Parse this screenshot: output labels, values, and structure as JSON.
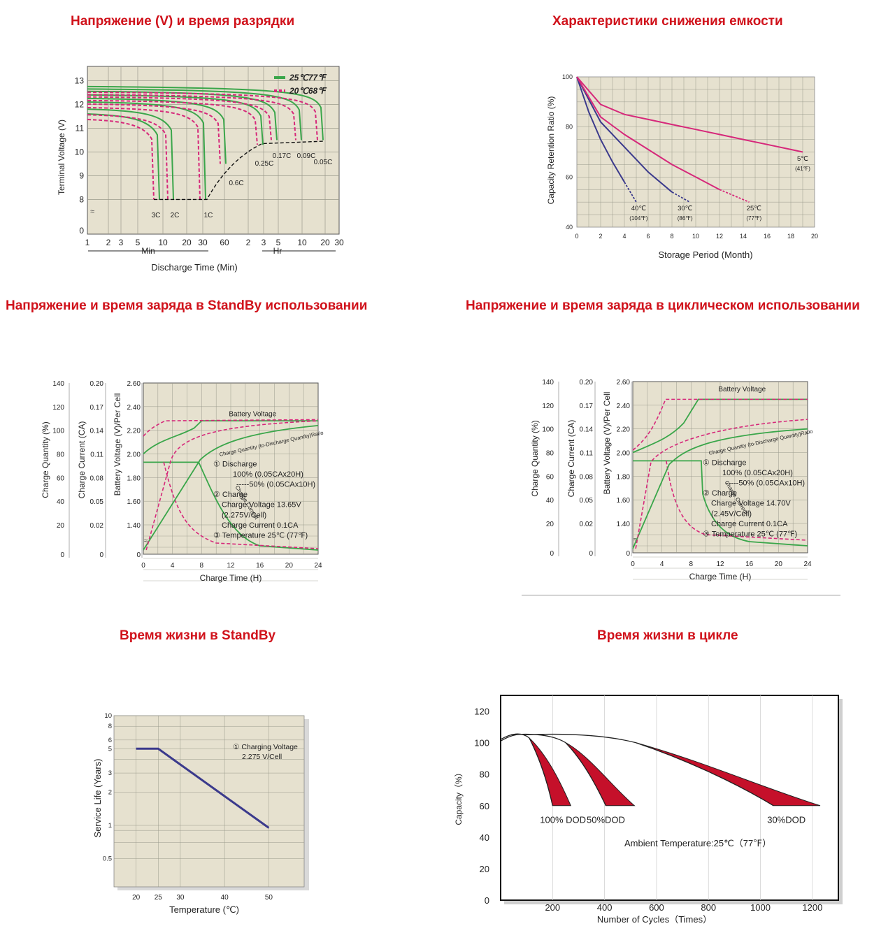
{
  "titles": {
    "discharge": "Напряжение (V) и время разрядки",
    "retention": "Характеристики снижения емкости",
    "standby_charge": "Напряжение и время заряда в StandBy использовании",
    "cyclic_charge": "Напряжение и время заряда в циклическом использовании",
    "standby_life": "Время жизни в StandBy",
    "cycle_life": "Время жизни в цикле"
  },
  "colors": {
    "title": "#d0121b",
    "plot_bg": "#e6e1cf",
    "grid": "#9a9a8c",
    "green": "#3aa64a",
    "magenta": "#d6287a",
    "navy": "#3b3a8c",
    "crimson": "#c5102a"
  },
  "chart_data": [
    {
      "id": "discharge",
      "type": "line",
      "xlabel": "Discharge Time (Min)",
      "ylabel": "Terminal Voltage (V)",
      "x_ticks": [
        "1",
        "2",
        "3",
        "5",
        "10",
        "20",
        "30",
        "60",
        "2",
        "3",
        "5",
        "10",
        "20",
        "30"
      ],
      "x_groups": [
        "Min",
        "Hr"
      ],
      "y_ticks": [
        "13",
        "12",
        "11",
        "10",
        "9",
        "8",
        "0"
      ],
      "legend": [
        "25℃77℉",
        "20℃68℉"
      ],
      "legend_position": "top-right",
      "rate_labels": [
        "3C",
        "2C",
        "1C",
        "0.6C",
        "0.25C",
        "0.17C",
        "0.09C",
        "0.05C"
      ],
      "series": [
        {
          "rate": "3C",
          "end_voltage": 8.0,
          "end_time_min": 7
        },
        {
          "rate": "2C",
          "end_voltage": 8.0,
          "end_time_min": 12
        },
        {
          "rate": "1C",
          "end_voltage": 8.0,
          "end_time_min": 30
        },
        {
          "rate": "0.6C",
          "end_voltage": 9.5,
          "end_time_min": 60
        },
        {
          "rate": "0.25C",
          "end_voltage": 10.3,
          "end_time_min": 180
        },
        {
          "rate": "0.17C",
          "end_voltage": 10.5,
          "end_time_min": 300
        },
        {
          "rate": "0.09C",
          "end_voltage": 10.5,
          "end_time_min": 600
        },
        {
          "rate": "0.05C",
          "end_voltage": 10.5,
          "end_time_min": 1200
        }
      ]
    },
    {
      "id": "retention",
      "type": "line",
      "xlabel": "Storage Period (Month)",
      "ylabel": "Capacity Retention Ratio (%)",
      "xlim": [
        0,
        20
      ],
      "ylim": [
        40,
        100
      ],
      "x_ticks": [
        "0",
        "2",
        "4",
        "6",
        "8",
        "10",
        "12",
        "14",
        "16",
        "18",
        "20"
      ],
      "y_ticks": [
        "100",
        "80",
        "60",
        "40"
      ],
      "series": [
        {
          "name": "40℃",
          "alt": "(104℉)",
          "x": [
            0,
            1,
            2,
            3,
            4,
            5
          ],
          "y": [
            100,
            86,
            75,
            66,
            58,
            50
          ]
        },
        {
          "name": "30℃",
          "alt": "(86℉)",
          "x": [
            0,
            2,
            4,
            6,
            8,
            9.5
          ],
          "y": [
            100,
            82,
            72,
            62,
            54,
            50
          ]
        },
        {
          "name": "25℃",
          "alt": "(77℉)",
          "x": [
            0,
            2,
            4,
            6,
            8,
            10,
            12,
            14.5
          ],
          "y": [
            100,
            84,
            77,
            71,
            65,
            60,
            55,
            50
          ]
        },
        {
          "name": "5℃",
          "alt": "(41℉)",
          "x": [
            0,
            2,
            4,
            6,
            8,
            10,
            12,
            14,
            16,
            18,
            19
          ],
          "y": [
            100,
            89,
            85,
            83,
            81,
            79,
            77,
            75,
            73,
            71,
            70
          ]
        }
      ]
    },
    {
      "id": "standby_charge",
      "type": "line",
      "xlabel": "Charge Time (H)",
      "y1label": "Charge Quantity (%)",
      "y2label": "Charge Current (CA)",
      "y3label": "Battery Voltage (V)/Per Cell",
      "x_ticks": [
        "0",
        "4",
        "8",
        "12",
        "16",
        "20",
        "24"
      ],
      "y1_ticks": [
        "140",
        "120",
        "100",
        "80",
        "60",
        "40",
        "20",
        "0"
      ],
      "y2_ticks": [
        "0.20",
        "0.17",
        "0.14",
        "0.11",
        "0.08",
        "0.05",
        "0.02",
        "0"
      ],
      "y3_ticks": [
        "2.60",
        "2.40",
        "2.20",
        "2.00",
        "1.80",
        "1.60",
        "1.40",
        "0"
      ],
      "curve_labels": [
        "Battery Voltage",
        "Charge Quantity (to-Discharge Quantity)Ratio",
        "Charge Current"
      ],
      "notes": [
        "① Discharge",
        "100% (0.05CAx20H)",
        "-----50% (0.05CAx10H)",
        "② Charge",
        "Charge Voltage 13.65V",
        "(2.275V/Cell)",
        "Charge Current 0.1CA",
        "③ Temperature 25℃ (77℉)"
      ]
    },
    {
      "id": "cyclic_charge",
      "type": "line",
      "xlabel": "Charge Time (H)",
      "y1label": "Charge Quantity (%)",
      "y2label": "Charge Current (CA)",
      "y3label": "Battery Voltage (V)/Per Cell",
      "x_ticks": [
        "0",
        "4",
        "8",
        "12",
        "16",
        "20",
        "24"
      ],
      "y1_ticks": [
        "140",
        "120",
        "100",
        "80",
        "60",
        "40",
        "20",
        "0"
      ],
      "y2_ticks": [
        "0.20",
        "0.17",
        "0.14",
        "0.11",
        "0.08",
        "0.05",
        "0.02",
        "0"
      ],
      "y3_ticks": [
        "2.60",
        "2.40",
        "2.20",
        "2.00",
        "1.80",
        "1.60",
        "1.40",
        "0"
      ],
      "curve_labels": [
        "Battery Voltage",
        "Charge Quantity (to-Discharge Quantity)Ratio",
        "Charge Current"
      ],
      "notes": [
        "① Discharge",
        "100% (0.05CAx20H)",
        "-----50% (0.05CAx10H)",
        "② Charge",
        "Charge Voltage 14.70V",
        "(2.45V/Cell)",
        "Charge Current 0.1CA",
        "③ Temperature 25℃ (77℉)"
      ]
    },
    {
      "id": "standby_life",
      "type": "line",
      "xlabel": "Temperature (℃)",
      "ylabel": "Service Life (Years)",
      "log_scale_y": true,
      "x_ticks": [
        "20",
        "25",
        "30",
        "40",
        "50"
      ],
      "y_ticks": [
        "10",
        "8",
        "6",
        "5",
        "3",
        "2",
        "1",
        "0.5"
      ],
      "note": [
        "① Charging Voltage",
        "2.275 V/Cell"
      ],
      "series": [
        {
          "x": [
            20,
            25,
            50
          ],
          "y": [
            5,
            5,
            0.95
          ]
        }
      ]
    },
    {
      "id": "cycle_life",
      "type": "area",
      "xlabel": "Number of Cycles（Times）",
      "ylabel": "Capacity（%）",
      "xlim": [
        0,
        1300
      ],
      "ylim": [
        0,
        130
      ],
      "x_ticks": [
        "200",
        "400",
        "600",
        "800",
        "1000",
        "1200"
      ],
      "y_ticks": [
        "120",
        "100",
        "80",
        "60",
        "40",
        "20",
        "0"
      ],
      "dod_labels": [
        "100% DOD",
        "50%DOD",
        "30%DOD"
      ],
      "annotation": "Ambient Temperature:25℃（77℉）"
    }
  ]
}
